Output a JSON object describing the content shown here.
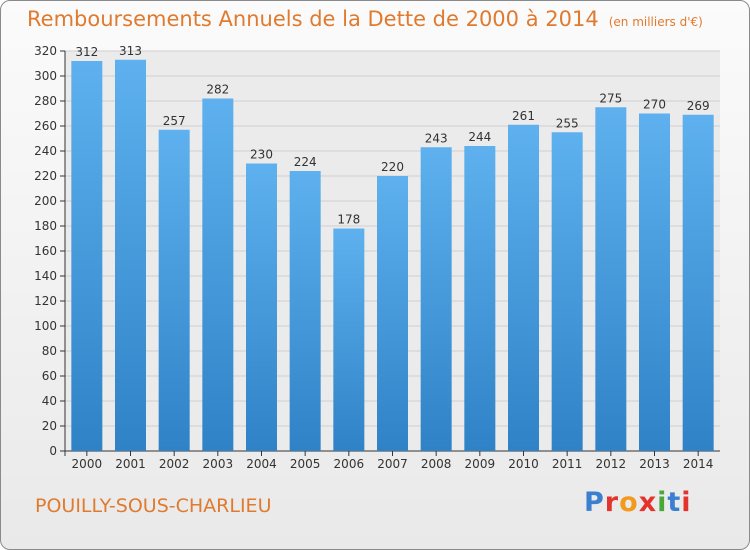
{
  "title": "Remboursements Annuels de la Dette de 2000 à 2014",
  "unit_note": "(en milliers d'€)",
  "commune": "POUILLY-SOUS-CHARLIEU",
  "logo": {
    "text": "Proxiti",
    "letter_colors": [
      "#3a7fd0",
      "#e2342d",
      "#f29a1e",
      "#e2342d",
      "#4aa83a",
      "#3a7fd0",
      "#e2342d"
    ]
  },
  "colors": {
    "title": "#e07a2e",
    "bar_top": "#5eb1ee",
    "bar_bottom": "#2f82c6",
    "grid": "#cfcfcf"
  },
  "chart_data": {
    "type": "bar",
    "title": "Remboursements Annuels de la Dette de 2000 à 2014",
    "ylabel": "en milliers d'€",
    "xlabel": "",
    "categories": [
      "2000",
      "2001",
      "2002",
      "2003",
      "2004",
      "2005",
      "2006",
      "2007",
      "2008",
      "2009",
      "2010",
      "2011",
      "2012",
      "2013",
      "2014"
    ],
    "values": [
      312,
      313,
      257,
      282,
      230,
      224,
      178,
      220,
      243,
      244,
      261,
      255,
      275,
      270,
      269
    ],
    "ylim": [
      0,
      320
    ],
    "yticks": [
      0,
      20,
      40,
      60,
      80,
      100,
      120,
      140,
      160,
      180,
      200,
      220,
      240,
      260,
      280,
      300,
      320
    ],
    "grid": true
  }
}
